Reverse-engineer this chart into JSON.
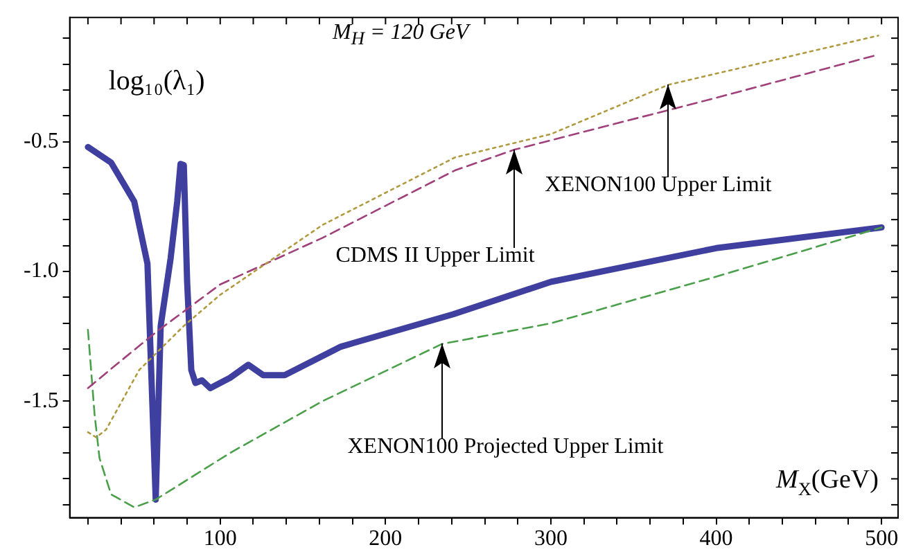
{
  "chart_data": {
    "type": "line",
    "ylabel": "log₁₀(λ₁)",
    "xlabel": "M$_{X}$(GeV)",
    "xlim": [
      9,
      510
    ],
    "ylim": [
      -1.95,
      -0.02
    ],
    "xticks": [
      {
        "value": 20,
        "label": null
      },
      {
        "value": 40,
        "label": null
      },
      {
        "value": 60,
        "label": null
      },
      {
        "value": 80,
        "label": null
      },
      100,
      {
        "value": 120,
        "label": null
      },
      {
        "value": 140,
        "label": null
      },
      {
        "value": 160,
        "label": null
      },
      {
        "value": 180,
        "label": null
      },
      200,
      {
        "value": 220,
        "label": null
      },
      {
        "value": 240,
        "label": null
      },
      {
        "value": 260,
        "label": null
      },
      {
        "value": 280,
        "label": null
      },
      300,
      {
        "value": 320,
        "label": null
      },
      {
        "value": 340,
        "label": null
      },
      {
        "value": 360,
        "label": null
      },
      {
        "value": 380,
        "label": null
      },
      400,
      {
        "value": 420,
        "label": null
      },
      {
        "value": 440,
        "label": null
      },
      {
        "value": 460,
        "label": null
      },
      {
        "value": 480,
        "label": null
      },
      500
    ],
    "yticks": [
      {
        "value": -1.9,
        "label": null
      },
      {
        "value": -1.8,
        "label": null
      },
      {
        "value": -1.7,
        "label": null
      },
      {
        "value": -1.6,
        "label": null
      },
      -1.5,
      {
        "value": -1.4,
        "label": null
      },
      {
        "value": -1.3,
        "label": null
      },
      {
        "value": -1.2,
        "label": null
      },
      {
        "value": -1.1,
        "label": null
      },
      {
        "value": -1.0,
        "label": "-1.0"
      },
      {
        "value": -0.9,
        "label": null
      },
      {
        "value": -0.8,
        "label": null
      },
      {
        "value": -0.7,
        "label": null
      },
      {
        "value": -0.6,
        "label": null
      },
      -0.5,
      {
        "value": -0.4,
        "label": null
      },
      {
        "value": -0.3,
        "label": null
      },
      {
        "value": -0.2,
        "label": null
      },
      {
        "value": -0.1,
        "label": null
      }
    ],
    "grid": false,
    "legend": false,
    "marker": "none",
    "series": [
      {
        "color": "#b09a40",
        "line_style": "dotted",
        "x": [
          20,
          25,
          31,
          51,
          78,
          100,
          162,
          242,
          300,
          371,
          498
        ],
        "values": [
          -1.62,
          -1.64,
          -1.61,
          -1.38,
          -1.21,
          -1.09,
          -0.82,
          -0.56,
          -0.47,
          -0.28,
          -0.09
        ]
      },
      {
        "color": "#a0407a",
        "line_style": "dashed",
        "x": [
          20,
          37,
          62,
          100,
          162,
          242,
          278,
          400,
          497
        ],
        "values": [
          -1.45,
          -1.36,
          -1.23,
          -1.05,
          -0.87,
          -0.61,
          -0.53,
          -0.33,
          -0.165
        ]
      },
      {
        "color": "#4aa04a",
        "line_style": "dashed",
        "x": [
          20,
          24,
          27,
          34,
          48,
          61,
          106,
          162,
          234,
          300,
          400,
          500
        ],
        "values": [
          -1.225,
          -1.55,
          -1.72,
          -1.86,
          -1.91,
          -1.88,
          -1.7,
          -1.5,
          -1.28,
          -1.2,
          -1.02,
          -0.83
        ]
      },
      {
        "color": "#3f3f9f",
        "line_style": "solid",
        "x": [
          20,
          34,
          48,
          56,
          61,
          64,
          70,
          74,
          76,
          78,
          80,
          82.5,
          85,
          89,
          94,
          106,
          117,
          126,
          139,
          173,
          241,
          300,
          400,
          500
        ],
        "values": [
          -0.52,
          -0.58,
          -0.73,
          -0.97,
          -1.88,
          -1.21,
          -0.95,
          -0.73,
          -0.585,
          -0.59,
          -1.04,
          -1.38,
          -1.43,
          -1.42,
          -1.45,
          -1.41,
          -1.36,
          -1.4,
          -1.4,
          -1.29,
          -1.165,
          -1.04,
          -0.91,
          -0.83
        ]
      }
    ],
    "annotations": [
      "M$_{H}$ = 120 GeV",
      {
        "text": "XENON100 Upper Limit",
        "x": 371,
        "y": -0.28
      },
      {
        "text": "CDMS II Upper Limit",
        "x": 278,
        "y": -0.53
      },
      {
        "text": "XENON100 Projected Upper Limit",
        "x": 234,
        "y": -1.28
      }
    ]
  }
}
